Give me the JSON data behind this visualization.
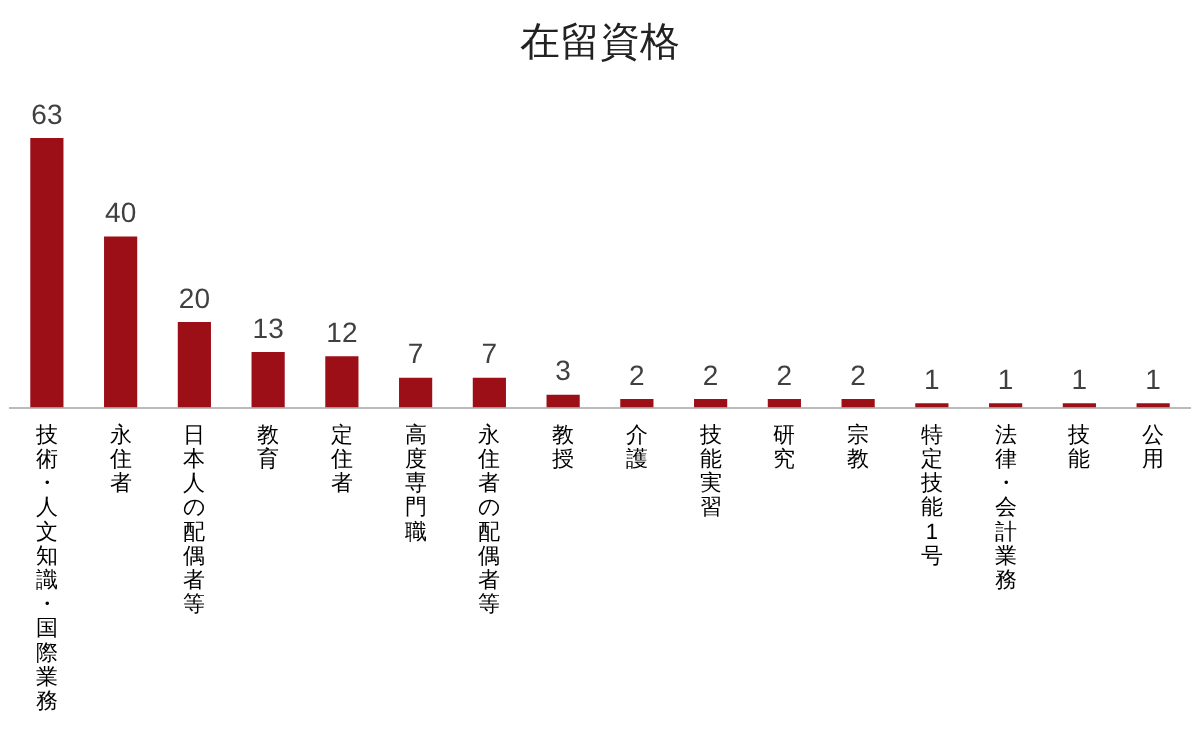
{
  "chart_data": {
    "type": "bar",
    "title": "在留資格",
    "categories": [
      "技術・人文知識・国際業務",
      "永住者",
      "日本人の配偶者等",
      "教育",
      "定住者",
      "高度専門職",
      "永住者の配偶者等",
      "教授",
      "介護",
      "技能実習",
      "研究",
      "宗教",
      "特定技能1号",
      "法律・会計業務",
      "技能",
      "公用"
    ],
    "values": [
      63,
      40,
      20,
      13,
      12,
      7,
      7,
      3,
      2,
      2,
      2,
      2,
      1,
      1,
      1,
      1
    ],
    "color": "#9c0f17",
    "data_labels": true,
    "grid": false,
    "legend": false
  }
}
